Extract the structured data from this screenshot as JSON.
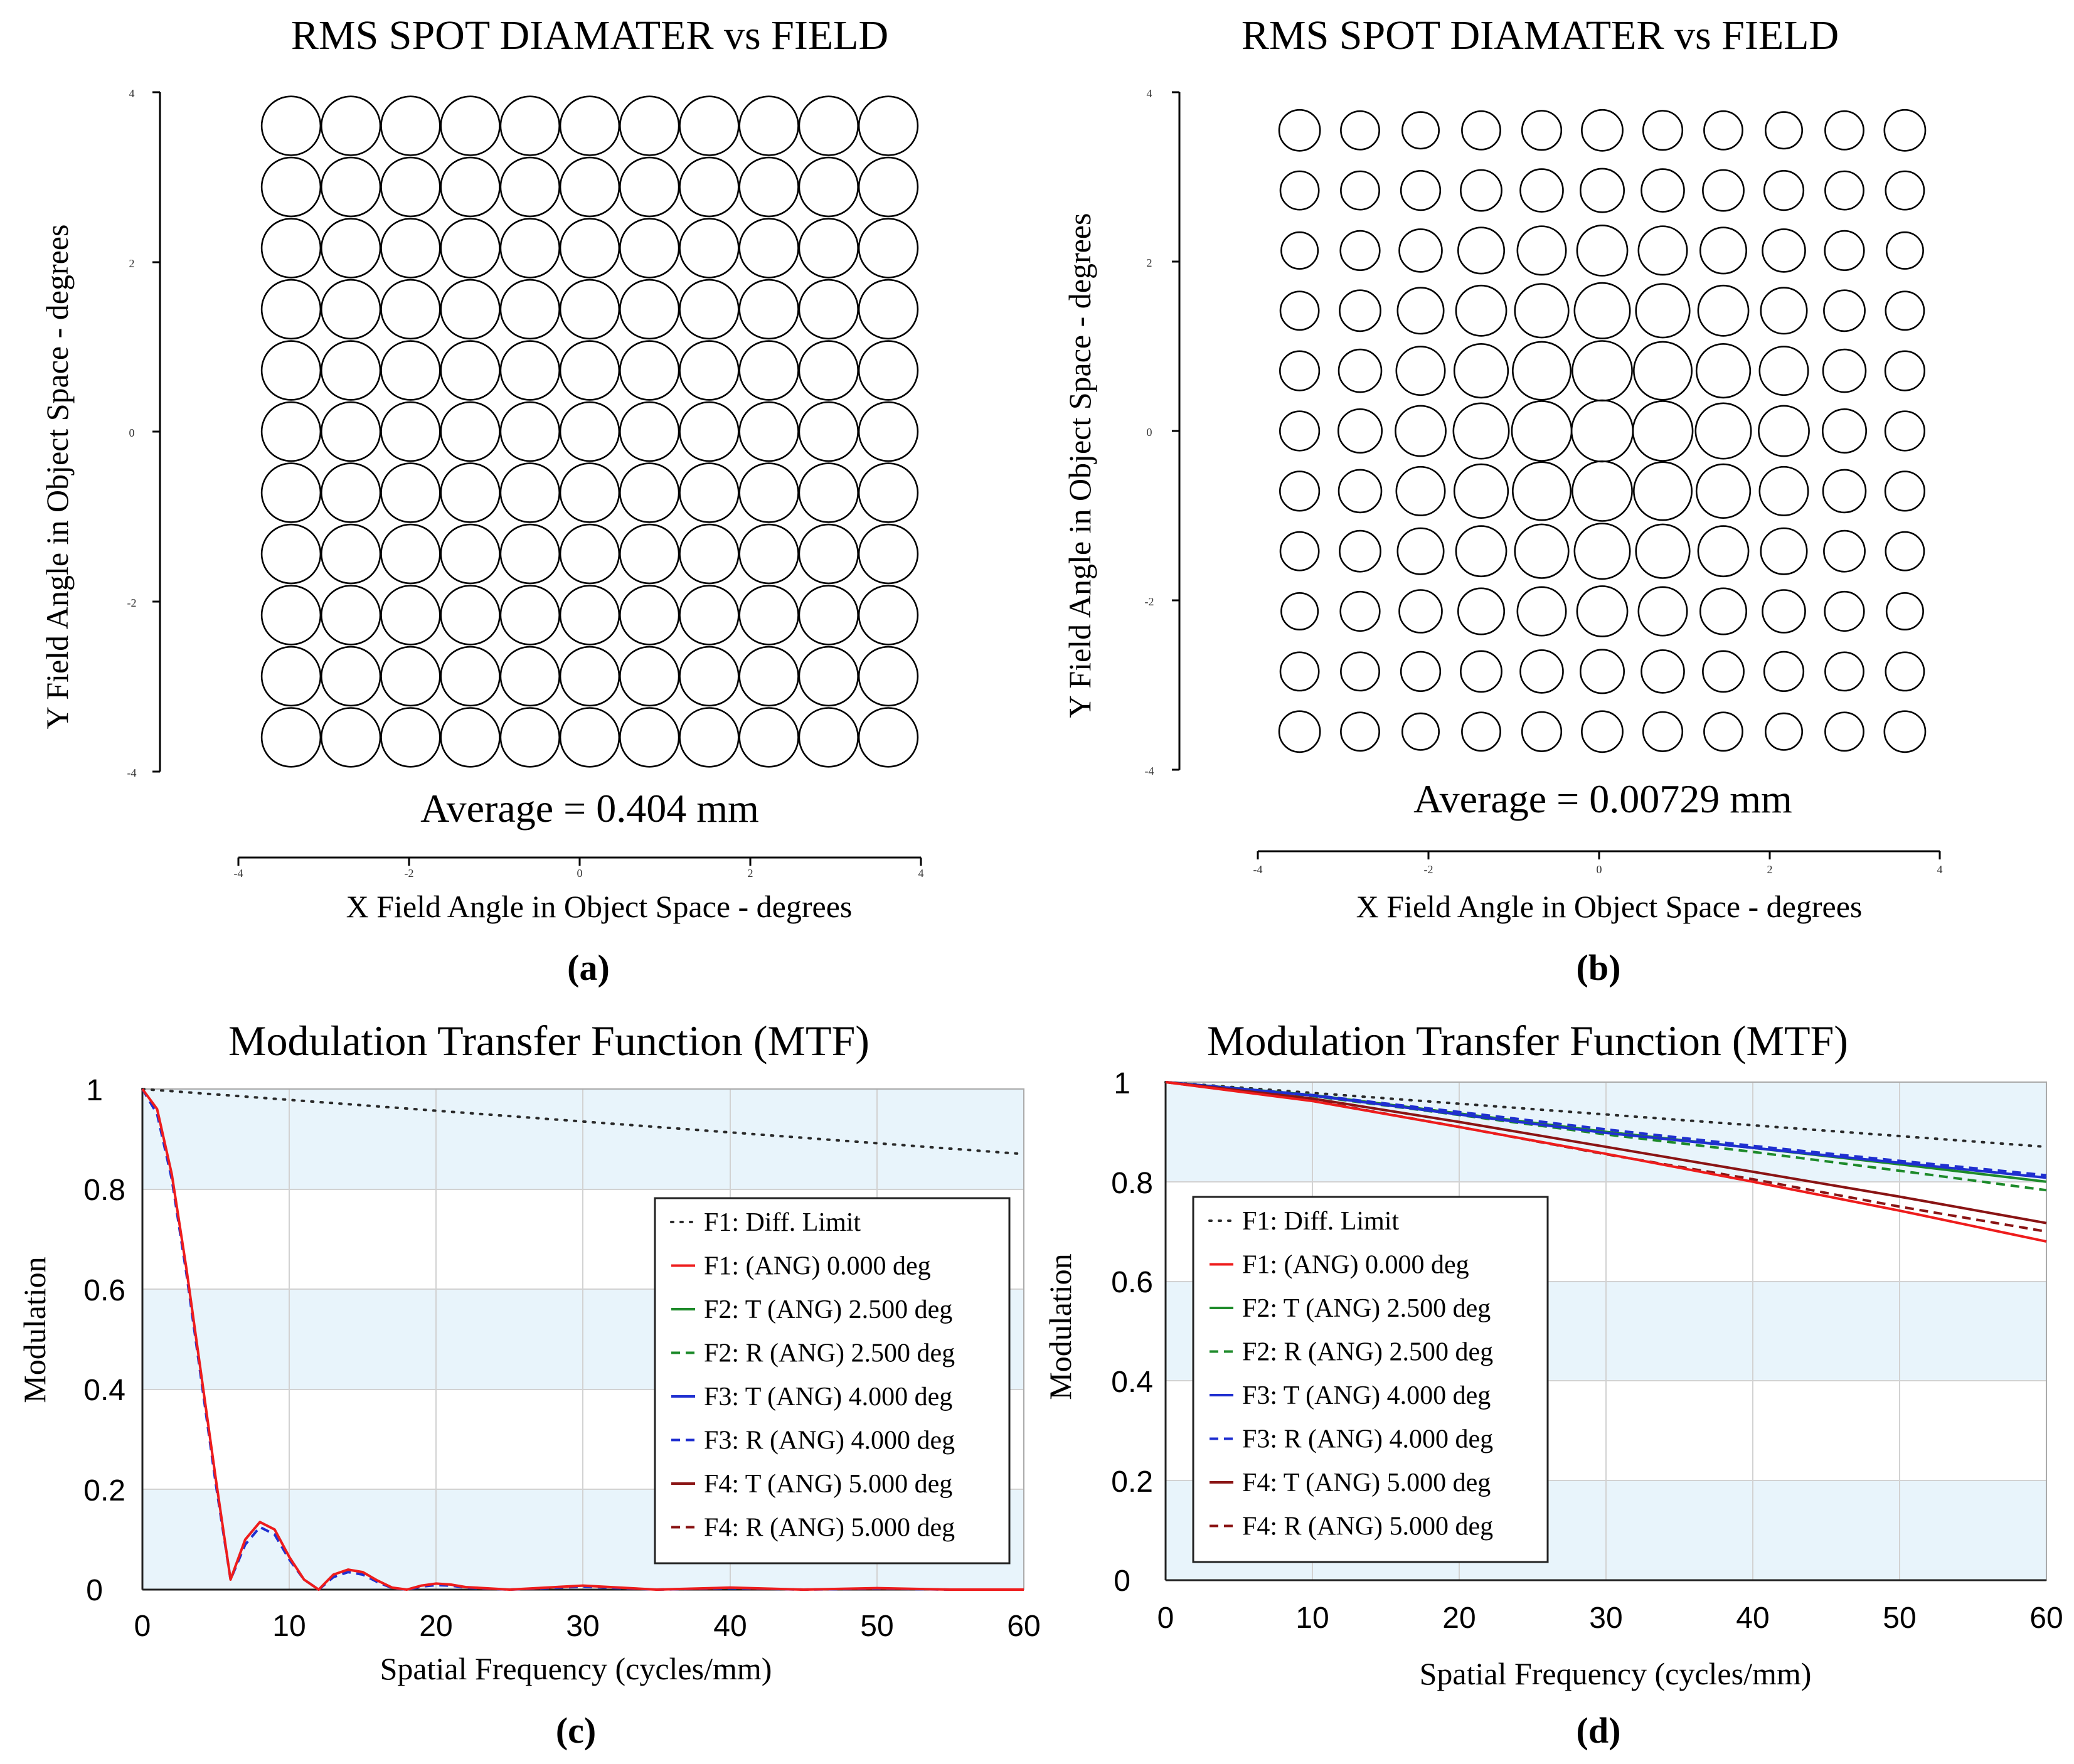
{
  "chart_data": [
    {
      "type": "scatter",
      "panel_label": "(a)",
      "title": "RMS SPOT DIAMATER  vs  FIELD",
      "xlabel": "X Field Angle in Object Space - degrees",
      "ylabel": "Y Field Angle in Object Space - degrees",
      "xlim": [
        -4,
        4
      ],
      "ylim": [
        -4,
        4
      ],
      "xticks": [
        "-4",
        "-2",
        "0",
        "2",
        "4"
      ],
      "yticks": [
        "4",
        "2",
        "0",
        "-2",
        "-4"
      ],
      "annotation": "Average = 0.404 mm",
      "grid_x": [
        -3.5,
        -2.8,
        -2.1,
        -1.4,
        -0.7,
        0,
        0.7,
        1.4,
        2.1,
        2.8,
        3.5
      ],
      "grid_y": [
        3.6,
        2.88,
        2.16,
        1.44,
        0.72,
        0,
        -0.72,
        -1.44,
        -2.16,
        -2.88,
        -3.6
      ],
      "marker_scale_degrees": [
        [
          0.69,
          0.69,
          0.69,
          0.69,
          0.69,
          0.69,
          0.69,
          0.69,
          0.69,
          0.69,
          0.69
        ],
        [
          0.69,
          0.69,
          0.69,
          0.69,
          0.69,
          0.69,
          0.69,
          0.69,
          0.69,
          0.69,
          0.69
        ],
        [
          0.69,
          0.69,
          0.69,
          0.69,
          0.69,
          0.69,
          0.69,
          0.69,
          0.69,
          0.69,
          0.69
        ],
        [
          0.69,
          0.69,
          0.69,
          0.69,
          0.69,
          0.69,
          0.69,
          0.69,
          0.69,
          0.69,
          0.69
        ],
        [
          0.69,
          0.69,
          0.69,
          0.69,
          0.69,
          0.69,
          0.69,
          0.69,
          0.69,
          0.69,
          0.69
        ],
        [
          0.69,
          0.69,
          0.69,
          0.69,
          0.69,
          0.69,
          0.69,
          0.69,
          0.69,
          0.69,
          0.69
        ],
        [
          0.69,
          0.69,
          0.69,
          0.69,
          0.69,
          0.69,
          0.69,
          0.69,
          0.69,
          0.69,
          0.69
        ],
        [
          0.69,
          0.69,
          0.69,
          0.69,
          0.69,
          0.69,
          0.69,
          0.69,
          0.69,
          0.69,
          0.69
        ],
        [
          0.69,
          0.69,
          0.69,
          0.69,
          0.69,
          0.69,
          0.69,
          0.69,
          0.69,
          0.69,
          0.69
        ],
        [
          0.69,
          0.69,
          0.69,
          0.69,
          0.69,
          0.69,
          0.69,
          0.69,
          0.69,
          0.69,
          0.69
        ],
        [
          0.69,
          0.69,
          0.69,
          0.69,
          0.69,
          0.69,
          0.69,
          0.69,
          0.69,
          0.69,
          0.69
        ]
      ]
    },
    {
      "type": "scatter",
      "panel_label": "(b)",
      "title": "RMS SPOT DIAMATER  vs  FIELD",
      "xlabel": "X Field Angle in Object Space - degrees",
      "ylabel": "Y Field Angle in Object Space - degrees",
      "xlim": [
        -4,
        4
      ],
      "ylim": [
        -4,
        4
      ],
      "xticks": [
        "-4",
        "-2",
        "0",
        "2",
        "4"
      ],
      "yticks": [
        "4",
        "2",
        "0",
        "-2",
        "-4"
      ],
      "annotation": "Average = 0.00729 mm",
      "grid_x": [
        -3.55,
        -2.84,
        -2.13,
        -1.42,
        -0.71,
        0,
        0.71,
        1.42,
        2.13,
        2.84,
        3.55
      ],
      "grid_y": [
        3.55,
        2.84,
        2.13,
        1.42,
        0.71,
        0,
        -0.71,
        -1.42,
        -2.13,
        -2.84,
        -3.55
      ],
      "marker_scale_degrees": [
        [
          0.48,
          0.45,
          0.43,
          0.45,
          0.46,
          0.48,
          0.46,
          0.45,
          0.43,
          0.45,
          0.48
        ],
        [
          0.45,
          0.45,
          0.46,
          0.48,
          0.5,
          0.51,
          0.5,
          0.48,
          0.46,
          0.45,
          0.45
        ],
        [
          0.43,
          0.46,
          0.5,
          0.54,
          0.57,
          0.59,
          0.57,
          0.54,
          0.5,
          0.46,
          0.43
        ],
        [
          0.45,
          0.48,
          0.54,
          0.59,
          0.63,
          0.65,
          0.63,
          0.59,
          0.54,
          0.48,
          0.45
        ],
        [
          0.46,
          0.5,
          0.57,
          0.63,
          0.68,
          0.7,
          0.68,
          0.63,
          0.57,
          0.5,
          0.46
        ],
        [
          0.46,
          0.51,
          0.59,
          0.65,
          0.7,
          0.72,
          0.7,
          0.65,
          0.59,
          0.51,
          0.46
        ],
        [
          0.46,
          0.5,
          0.57,
          0.63,
          0.68,
          0.7,
          0.68,
          0.63,
          0.57,
          0.5,
          0.46
        ],
        [
          0.45,
          0.48,
          0.54,
          0.59,
          0.63,
          0.65,
          0.63,
          0.59,
          0.54,
          0.48,
          0.45
        ],
        [
          0.43,
          0.46,
          0.5,
          0.54,
          0.57,
          0.59,
          0.57,
          0.54,
          0.5,
          0.46,
          0.43
        ],
        [
          0.45,
          0.45,
          0.46,
          0.48,
          0.5,
          0.51,
          0.5,
          0.48,
          0.46,
          0.45,
          0.45
        ],
        [
          0.48,
          0.45,
          0.43,
          0.45,
          0.46,
          0.48,
          0.46,
          0.45,
          0.43,
          0.45,
          0.48
        ]
      ]
    },
    {
      "type": "line",
      "panel_label": "(c)",
      "title": "Modulation Transfer Function (MTF)",
      "xlabel": "Spatial Frequency (cycles/mm)",
      "ylabel": "Modulation",
      "xlim": [
        0,
        60
      ],
      "ylim": [
        0,
        1
      ],
      "xticks": [
        "0",
        "10",
        "20",
        "30",
        "40",
        "50",
        "60"
      ],
      "yticks": [
        "1",
        "0.8",
        "0.6",
        "0.4",
        "0.2",
        "0"
      ],
      "legend": [
        {
          "label": "F1: Diff. Limit",
          "color": "#2a2a2a",
          "dash": "dot"
        },
        {
          "label": "F1: (ANG) 0.000 deg",
          "color": "#ee1c1c",
          "dash": "solid"
        },
        {
          "label": "F2: T (ANG) 2.500 deg",
          "color": "#1d8a2a",
          "dash": "solid"
        },
        {
          "label": "F2: R (ANG) 2.500 deg",
          "color": "#1d8a2a",
          "dash": "dash"
        },
        {
          "label": "F3: T (ANG) 4.000 deg",
          "color": "#1f2fd0",
          "dash": "solid"
        },
        {
          "label": "F3: R (ANG) 4.000 deg",
          "color": "#1f2fd0",
          "dash": "dash"
        },
        {
          "label": "F4: T (ANG) 5.000 deg",
          "color": "#8a1414",
          "dash": "solid"
        },
        {
          "label": "F4: R (ANG) 5.000 deg",
          "color": "#8a1414",
          "dash": "dash"
        }
      ],
      "series": [
        {
          "name": "F1: Diff. Limit",
          "x": [
            0,
            60
          ],
          "y": [
            1.0,
            0.87
          ]
        },
        {
          "name": "F3: R (ANG) 4.000 deg",
          "x": [
            0,
            1,
            2,
            3,
            4,
            5,
            6,
            7,
            8,
            9,
            10,
            11,
            12,
            13,
            14,
            15,
            16,
            17,
            18,
            19,
            20,
            21,
            22,
            25,
            30,
            35,
            40,
            45,
            50,
            55,
            60
          ],
          "y": [
            1.0,
            0.95,
            0.82,
            0.63,
            0.42,
            0.21,
            0.02,
            0.09,
            0.125,
            0.11,
            0.06,
            0.02,
            0.0,
            0.025,
            0.035,
            0.03,
            0.015,
            0.003,
            0.0,
            0.006,
            0.009,
            0.008,
            0.004,
            0.0,
            0.006,
            0.0,
            0.003,
            0.0,
            0.002,
            0.0,
            0.0
          ]
        },
        {
          "name": "F1: (ANG) 0.000 deg",
          "x": [
            0,
            1,
            2,
            3,
            4,
            5,
            6,
            7,
            8,
            9,
            10,
            11,
            12,
            13,
            14,
            15,
            16,
            17,
            18,
            19,
            20,
            21,
            22,
            25,
            30,
            35,
            40,
            45,
            50,
            55,
            60
          ],
          "y": [
            1.0,
            0.96,
            0.83,
            0.64,
            0.43,
            0.22,
            0.02,
            0.1,
            0.135,
            0.12,
            0.065,
            0.02,
            0.0,
            0.03,
            0.04,
            0.035,
            0.018,
            0.004,
            0.0,
            0.008,
            0.012,
            0.01,
            0.005,
            0.0,
            0.008,
            0.0,
            0.004,
            0.0,
            0.003,
            0.0,
            0.0
          ]
        }
      ]
    },
    {
      "type": "line",
      "panel_label": "(d)",
      "title": "Modulation Transfer Function (MTF)",
      "xlabel": "Spatial Frequency (cycles/mm)",
      "ylabel": "Modulation",
      "xlim": [
        0,
        60
      ],
      "ylim": [
        0,
        1
      ],
      "xticks": [
        "0",
        "10",
        "20",
        "30",
        "40",
        "50",
        "60"
      ],
      "yticks": [
        "1",
        "0.8",
        "0.6",
        "0.4",
        "0.2",
        "0"
      ],
      "legend": [
        {
          "label": "F1: Diff. Limit",
          "color": "#2a2a2a",
          "dash": "dot"
        },
        {
          "label": "F1: (ANG) 0.000 deg",
          "color": "#ee1c1c",
          "dash": "solid"
        },
        {
          "label": "F2: T (ANG) 2.500 deg",
          "color": "#1d8a2a",
          "dash": "solid"
        },
        {
          "label": "F2: R (ANG) 2.500 deg",
          "color": "#1d8a2a",
          "dash": "dash"
        },
        {
          "label": "F3: T (ANG) 4.000 deg",
          "color": "#1f2fd0",
          "dash": "solid"
        },
        {
          "label": "F3: R (ANG) 4.000 deg",
          "color": "#1f2fd0",
          "dash": "dash"
        },
        {
          "label": "F4: T (ANG) 5.000 deg",
          "color": "#8a1414",
          "dash": "solid"
        },
        {
          "label": "F4: R (ANG) 5.000 deg",
          "color": "#8a1414",
          "dash": "dash"
        }
      ],
      "series": [
        {
          "name": "F1: Diff. Limit",
          "x": [
            0,
            60
          ],
          "y": [
            1.0,
            0.87
          ]
        },
        {
          "name": "F2: T (ANG) 2.500 deg",
          "x": [
            0,
            10,
            20,
            30,
            40,
            50,
            60
          ],
          "y": [
            1.0,
            0.974,
            0.937,
            0.9,
            0.868,
            0.835,
            0.8
          ]
        },
        {
          "name": "F2: R (ANG) 2.500 deg",
          "x": [
            0,
            10,
            20,
            30,
            40,
            50,
            60
          ],
          "y": [
            1.0,
            0.972,
            0.934,
            0.895,
            0.86,
            0.822,
            0.783
          ]
        },
        {
          "name": "F3: T (ANG) 4.000 deg",
          "x": [
            0,
            10,
            20,
            30,
            40,
            50,
            60
          ],
          "y": [
            1.0,
            0.973,
            0.935,
            0.898,
            0.868,
            0.838,
            0.808
          ]
        },
        {
          "name": "F3: R (ANG) 4.000 deg",
          "x": [
            0,
            10,
            20,
            30,
            40,
            50,
            60
          ],
          "y": [
            1.0,
            0.974,
            0.94,
            0.905,
            0.872,
            0.842,
            0.813
          ]
        },
        {
          "name": "F4: T (ANG) 5.000 deg",
          "x": [
            0,
            10,
            20,
            30,
            40,
            50,
            60
          ],
          "y": [
            1.0,
            0.967,
            0.92,
            0.87,
            0.82,
            0.77,
            0.717
          ]
        },
        {
          "name": "F4: R (ANG) 5.000 deg",
          "x": [
            0,
            10,
            20,
            30,
            40,
            50,
            60
          ],
          "y": [
            1.0,
            0.963,
            0.91,
            0.855,
            0.805,
            0.75,
            0.7
          ]
        },
        {
          "name": "F1: (ANG) 0.000 deg",
          "x": [
            0,
            10,
            20,
            30,
            40,
            50,
            60
          ],
          "y": [
            1.0,
            0.962,
            0.91,
            0.856,
            0.8,
            0.742,
            0.68
          ]
        }
      ]
    }
  ]
}
